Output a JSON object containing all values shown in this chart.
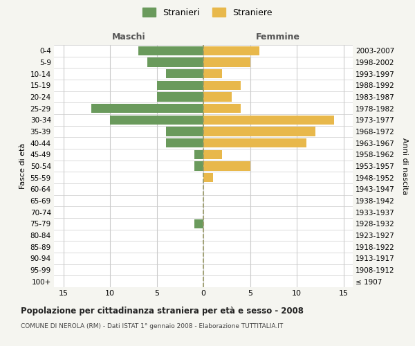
{
  "age_groups": [
    "100+",
    "95-99",
    "90-94",
    "85-89",
    "80-84",
    "75-79",
    "70-74",
    "65-69",
    "60-64",
    "55-59",
    "50-54",
    "45-49",
    "40-44",
    "35-39",
    "30-34",
    "25-29",
    "20-24",
    "15-19",
    "10-14",
    "5-9",
    "0-4"
  ],
  "birth_years": [
    "≤ 1907",
    "1908-1912",
    "1913-1917",
    "1918-1922",
    "1923-1927",
    "1928-1932",
    "1933-1937",
    "1938-1942",
    "1943-1947",
    "1948-1952",
    "1953-1957",
    "1958-1962",
    "1963-1967",
    "1968-1972",
    "1973-1977",
    "1978-1982",
    "1983-1987",
    "1988-1992",
    "1993-1997",
    "1998-2002",
    "2003-2007"
  ],
  "maschi": [
    0,
    0,
    0,
    0,
    0,
    1,
    0,
    0,
    0,
    0,
    1,
    1,
    4,
    4,
    10,
    12,
    5,
    5,
    4,
    6,
    7
  ],
  "femmine": [
    0,
    0,
    0,
    0,
    0,
    0,
    0,
    0,
    0,
    1,
    5,
    2,
    11,
    12,
    14,
    4,
    3,
    4,
    2,
    5,
    6
  ],
  "male_color": "#6a9a5c",
  "female_color": "#e8b84b",
  "center_line_color": "#999966",
  "grid_color": "#cccccc",
  "title": "Popolazione per cittadinanza straniera per età e sesso - 2008",
  "subtitle": "COMUNE DI NEROLA (RM) - Dati ISTAT 1° gennaio 2008 - Elaborazione TUTTITALIA.IT",
  "ylabel_left": "Fasce di età",
  "ylabel_right": "Anni di nascita",
  "xlabel_left": "Maschi",
  "xlabel_top": "Femmine",
  "legend_stranieri": "Stranieri",
  "legend_straniere": "Straniere",
  "xlim": 16,
  "bar_height": 0.8,
  "bg_color": "#f5f5f0",
  "plot_bg_color": "#ffffff"
}
